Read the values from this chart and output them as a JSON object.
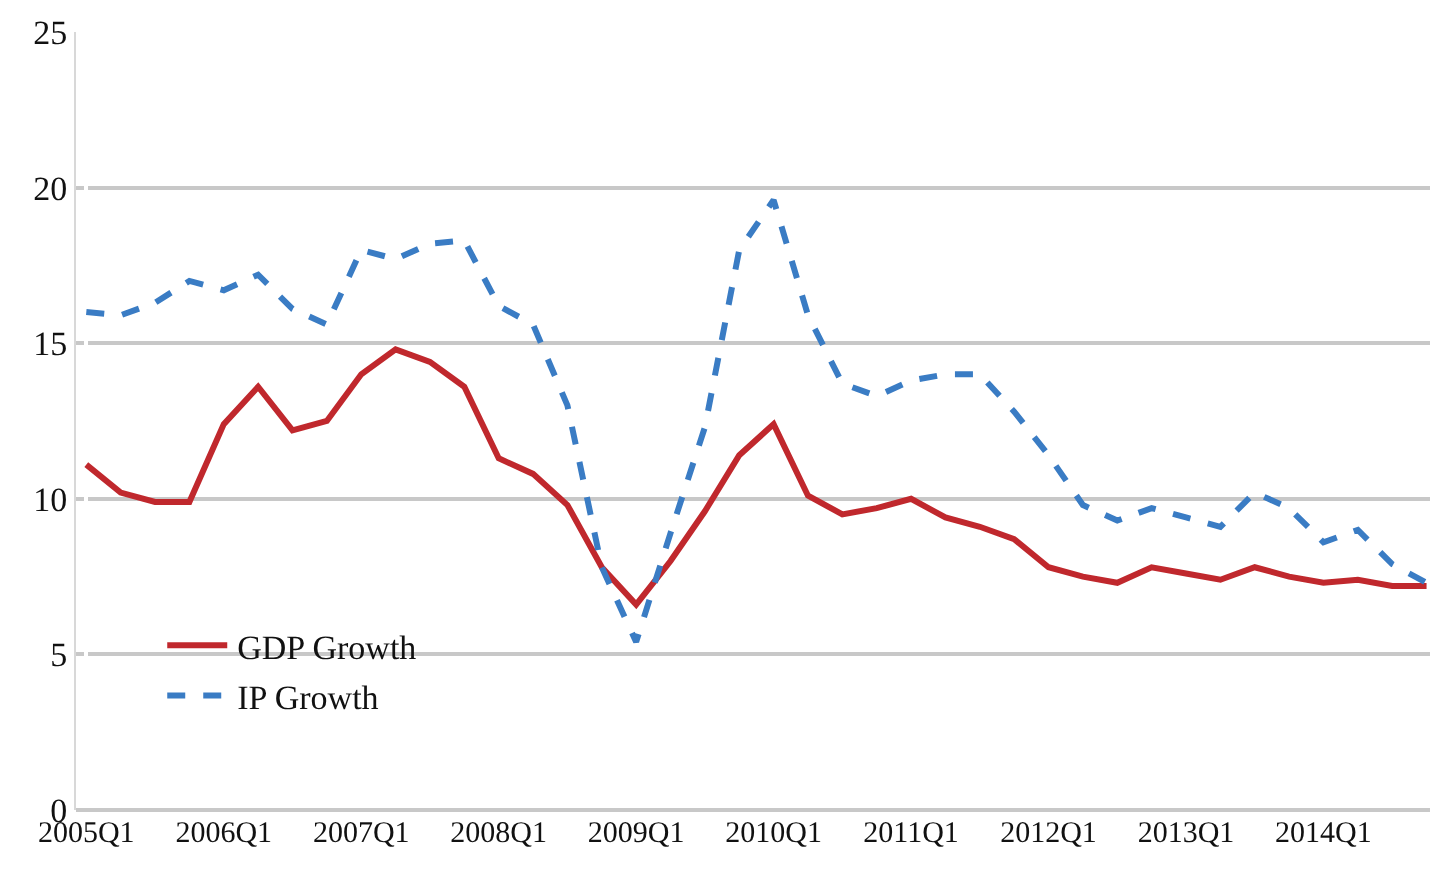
{
  "chart_data": {
    "type": "line",
    "categories": [
      "2005Q1",
      null,
      null,
      null,
      "2006Q1",
      null,
      null,
      null,
      "2007Q1",
      null,
      null,
      null,
      "2008Q1",
      null,
      null,
      null,
      "2009Q1",
      null,
      null,
      null,
      "2010Q1",
      null,
      null,
      null,
      "2011Q1",
      null,
      null,
      null,
      "2012Q1",
      null,
      null,
      null,
      "2013Q1",
      null,
      null,
      null,
      "2014Q1",
      null,
      null,
      null
    ],
    "series": [
      {
        "name": "GDP Growth",
        "color": "#c0282d",
        "line_style": "solid",
        "values": [
          11.1,
          10.2,
          9.9,
          9.9,
          12.4,
          13.6,
          12.2,
          12.5,
          14.0,
          14.8,
          14.4,
          13.6,
          11.3,
          10.8,
          9.8,
          7.8,
          6.6,
          8.0,
          9.6,
          11.4,
          12.4,
          10.1,
          9.5,
          9.7,
          10.0,
          9.4,
          9.1,
          8.7,
          7.8,
          7.5,
          7.3,
          7.8,
          7.6,
          7.4,
          7.8,
          7.5,
          7.3,
          7.4,
          7.2,
          7.2
        ]
      },
      {
        "name": "IP Growth",
        "color": "#3a7cc4",
        "line_style": "dashed",
        "values": [
          16.0,
          15.9,
          16.3,
          17.0,
          16.7,
          17.2,
          16.1,
          15.6,
          18.0,
          17.7,
          18.2,
          18.3,
          16.2,
          15.6,
          13.0,
          7.8,
          5.4,
          8.9,
          12.3,
          18.0,
          19.6,
          15.9,
          13.7,
          13.3,
          13.8,
          14.0,
          14.0,
          12.8,
          11.4,
          9.8,
          9.3,
          9.7,
          9.4,
          9.1,
          10.2,
          9.7,
          8.6,
          9.0,
          7.9,
          7.3
        ]
      }
    ],
    "ylim": [
      0,
      25
    ],
    "yticks": [
      0,
      5,
      10,
      15,
      20,
      25
    ],
    "grid": "y",
    "legend": "bottom left"
  }
}
